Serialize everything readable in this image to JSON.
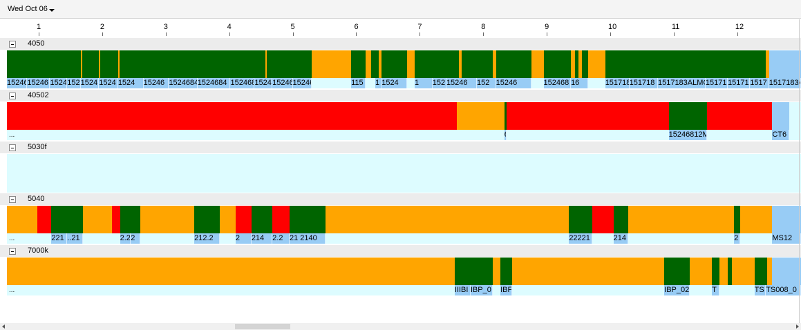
{
  "date_label": "Wed Oct 06",
  "hours": [
    "1",
    "2",
    "3",
    "4",
    "5",
    "6",
    "7",
    "8",
    "9",
    "10",
    "11",
    "12"
  ],
  "colors": {
    "running": "#006400",
    "idle": "#ffa500",
    "down": "#ff0000",
    "job": "#98ccf5"
  },
  "groups": [
    {
      "name": "4050",
      "segments": [
        {
          "s": 0,
          "e": 0.5,
          "c": "idle"
        },
        {
          "s": 0.5,
          "e": 1.66,
          "c": "running"
        },
        {
          "s": 1.66,
          "e": 1.69,
          "c": "idle"
        },
        {
          "s": 1.69,
          "e": 1.95,
          "c": "running"
        },
        {
          "s": 1.95,
          "e": 1.97,
          "c": "idle"
        },
        {
          "s": 1.97,
          "e": 2.25,
          "c": "running"
        },
        {
          "s": 2.25,
          "e": 2.27,
          "c": "idle"
        },
        {
          "s": 2.27,
          "e": 4.57,
          "c": "running"
        },
        {
          "s": 4.57,
          "e": 4.59,
          "c": "idle"
        },
        {
          "s": 4.59,
          "e": 5.3,
          "c": "running"
        },
        {
          "s": 5.3,
          "e": 5.92,
          "c": "idle"
        },
        {
          "s": 5.92,
          "e": 6.15,
          "c": "running"
        },
        {
          "s": 6.15,
          "e": 6.23,
          "c": "idle"
        },
        {
          "s": 6.23,
          "e": 6.35,
          "c": "running"
        },
        {
          "s": 6.35,
          "e": 6.4,
          "c": "idle"
        },
        {
          "s": 6.4,
          "e": 6.8,
          "c": "running"
        },
        {
          "s": 6.8,
          "e": 6.92,
          "c": "idle"
        },
        {
          "s": 6.92,
          "e": 7.62,
          "c": "running"
        },
        {
          "s": 7.62,
          "e": 7.66,
          "c": "idle"
        },
        {
          "s": 7.66,
          "e": 8.15,
          "c": "running"
        },
        {
          "s": 8.15,
          "e": 8.2,
          "c": "idle"
        },
        {
          "s": 8.2,
          "e": 8.76,
          "c": "running"
        },
        {
          "s": 8.76,
          "e": 8.95,
          "c": "idle"
        },
        {
          "s": 8.95,
          "e": 9.38,
          "c": "running"
        },
        {
          "s": 9.38,
          "e": 9.44,
          "c": "idle"
        },
        {
          "s": 9.44,
          "e": 9.5,
          "c": "running"
        },
        {
          "s": 9.5,
          "e": 9.55,
          "c": "idle"
        },
        {
          "s": 9.55,
          "e": 9.65,
          "c": "running"
        },
        {
          "s": 9.65,
          "e": 9.92,
          "c": "idle"
        },
        {
          "s": 9.92,
          "e": 12.45,
          "c": "running"
        },
        {
          "s": 12.45,
          "e": 12.5,
          "c": "idle"
        },
        {
          "s": 12.5,
          "e": 13.0,
          "c": "job"
        }
      ],
      "jobs": [
        {
          "s": 0,
          "e": 0.45,
          "t": ".15246"
        },
        {
          "s": 0.45,
          "e": 0.82,
          "t": "15246"
        },
        {
          "s": 0.82,
          "e": 1.18,
          "t": "15246"
        },
        {
          "s": 1.18,
          "e": 1.45,
          "t": "15246"
        },
        {
          "s": 1.45,
          "e": 1.66,
          "t": "15246"
        },
        {
          "s": 1.66,
          "e": 1.95,
          "t": "1524"
        },
        {
          "s": 1.95,
          "e": 2.25,
          "t": "1524"
        },
        {
          "s": 2.25,
          "e": 2.65,
          "t": "1524"
        },
        {
          "s": 2.65,
          "e": 3.05,
          "t": "15246"
        },
        {
          "s": 3.05,
          "e": 3.5,
          "t": "1524684"
        },
        {
          "s": 3.5,
          "e": 4.02,
          "t": "1524684"
        },
        {
          "s": 4.02,
          "e": 4.4,
          "t": "152468"
        },
        {
          "s": 4.4,
          "e": 4.68,
          "t": "15246"
        },
        {
          "s": 4.68,
          "e": 5.0,
          "t": "15246"
        },
        {
          "s": 5.0,
          "e": 5.3,
          "t": "15246"
        },
        {
          "s": 5.92,
          "e": 6.15,
          "t": "115"
        },
        {
          "s": 6.3,
          "e": 6.4,
          "t": "1"
        },
        {
          "s": 6.4,
          "e": 6.8,
          "t": "1524"
        },
        {
          "s": 6.92,
          "e": 7.2,
          "t": "1"
        },
        {
          "s": 7.2,
          "e": 7.42,
          "t": "152"
        },
        {
          "s": 7.42,
          "e": 7.9,
          "t": "15246"
        },
        {
          "s": 7.9,
          "e": 8.2,
          "t": "152"
        },
        {
          "s": 8.2,
          "e": 8.76,
          "t": "15246"
        },
        {
          "s": 8.95,
          "e": 9.38,
          "t": "152468"
        },
        {
          "s": 9.38,
          "e": 9.65,
          "t": "16"
        },
        {
          "s": 9.92,
          "e": 10.3,
          "t": "151718"
        },
        {
          "s": 10.3,
          "e": 10.75,
          "t": "151718"
        },
        {
          "s": 10.75,
          "e": 11.5,
          "t": "1517183ALMC"
        },
        {
          "s": 11.5,
          "e": 11.85,
          "t": "15171"
        },
        {
          "s": 11.85,
          "e": 12.2,
          "t": "15171"
        },
        {
          "s": 12.2,
          "e": 12.5,
          "t": "1517"
        },
        {
          "s": 12.5,
          "e": 13.0,
          "t": "1517183A"
        }
      ],
      "subtext": ""
    },
    {
      "name": "40502",
      "segments": [
        {
          "s": 0,
          "e": 7.58,
          "c": "down"
        },
        {
          "s": 7.58,
          "e": 8.33,
          "c": "idle"
        },
        {
          "s": 8.33,
          "e": 8.37,
          "c": "running"
        },
        {
          "s": 8.37,
          "e": 10.92,
          "c": "down"
        },
        {
          "s": 10.92,
          "e": 11.52,
          "c": "running"
        },
        {
          "s": 11.52,
          "e": 12.55,
          "c": "down"
        },
        {
          "s": 12.55,
          "e": 12.82,
          "c": "job"
        }
      ],
      "jobs": [
        {
          "s": 8.33,
          "e": 8.37,
          "t": "6"
        },
        {
          "s": 10.92,
          "e": 11.52,
          "t": "15246812M"
        },
        {
          "s": 12.55,
          "e": 12.82,
          "t": "CT6"
        }
      ],
      "subtext": "..."
    },
    {
      "name": "5030f",
      "segments": [],
      "jobs": [],
      "subtext": ""
    },
    {
      "name": "5040",
      "segments": [
        {
          "s": 0,
          "e": 0.98,
          "c": "idle"
        },
        {
          "s": 0.98,
          "e": 1.2,
          "c": "down"
        },
        {
          "s": 1.2,
          "e": 1.7,
          "c": "running"
        },
        {
          "s": 1.7,
          "e": 2.15,
          "c": "idle"
        },
        {
          "s": 2.15,
          "e": 2.28,
          "c": "down"
        },
        {
          "s": 2.28,
          "e": 2.6,
          "c": "running"
        },
        {
          "s": 2.6,
          "e": 3.45,
          "c": "idle"
        },
        {
          "s": 3.45,
          "e": 3.85,
          "c": "running"
        },
        {
          "s": 3.85,
          "e": 4.1,
          "c": "idle"
        },
        {
          "s": 4.1,
          "e": 4.35,
          "c": "down"
        },
        {
          "s": 4.35,
          "e": 4.68,
          "c": "running"
        },
        {
          "s": 4.68,
          "e": 4.95,
          "c": "down"
        },
        {
          "s": 4.95,
          "e": 5.52,
          "c": "running"
        },
        {
          "s": 5.52,
          "e": 9.35,
          "c": "idle"
        },
        {
          "s": 9.35,
          "e": 9.72,
          "c": "running"
        },
        {
          "s": 9.72,
          "e": 10.05,
          "c": "down"
        },
        {
          "s": 10.05,
          "e": 10.28,
          "c": "running"
        },
        {
          "s": 10.28,
          "e": 11.95,
          "c": "idle"
        },
        {
          "s": 11.95,
          "e": 12.05,
          "c": "running"
        },
        {
          "s": 12.05,
          "e": 12.55,
          "c": "idle"
        },
        {
          "s": 12.55,
          "e": 13.0,
          "c": "job"
        }
      ],
      "jobs": [
        {
          "s": 1.2,
          "e": 1.45,
          "t": "221"
        },
        {
          "s": 1.45,
          "e": 1.7,
          "t": "..21"
        },
        {
          "s": 2.28,
          "e": 2.45,
          "t": "2.2"
        },
        {
          "s": 2.45,
          "e": 2.6,
          "t": "2"
        },
        {
          "s": 3.45,
          "e": 3.85,
          "t": "212.2"
        },
        {
          "s": 4.1,
          "e": 4.35,
          "t": "2"
        },
        {
          "s": 4.35,
          "e": 4.68,
          "t": "214"
        },
        {
          "s": 4.68,
          "e": 4.95,
          "t": "2.2"
        },
        {
          "s": 4.95,
          "e": 5.52,
          "t": "21 2140"
        },
        {
          "s": 9.35,
          "e": 9.72,
          "t": "22221"
        },
        {
          "s": 10.05,
          "e": 10.28,
          "t": "214"
        },
        {
          "s": 11.95,
          "e": 12.05,
          "t": "2"
        },
        {
          "s": 12.55,
          "e": 13.0,
          "t": "MS12"
        }
      ],
      "subtext": "..."
    },
    {
      "name": "7000k",
      "segments": [
        {
          "s": 0,
          "e": 7.55,
          "c": "idle"
        },
        {
          "s": 7.55,
          "e": 8.15,
          "c": "running"
        },
        {
          "s": 8.15,
          "e": 8.27,
          "c": "idle"
        },
        {
          "s": 8.27,
          "e": 8.45,
          "c": "running"
        },
        {
          "s": 8.45,
          "e": 10.85,
          "c": "idle"
        },
        {
          "s": 10.85,
          "e": 11.25,
          "c": "running"
        },
        {
          "s": 11.25,
          "e": 11.6,
          "c": "idle"
        },
        {
          "s": 11.6,
          "e": 11.72,
          "c": "running"
        },
        {
          "s": 11.72,
          "e": 11.85,
          "c": "idle"
        },
        {
          "s": 11.85,
          "e": 11.92,
          "c": "running"
        },
        {
          "s": 11.92,
          "e": 12.27,
          "c": "idle"
        },
        {
          "s": 12.27,
          "e": 12.47,
          "c": "running"
        },
        {
          "s": 12.47,
          "e": 12.55,
          "c": "idle"
        },
        {
          "s": 12.55,
          "e": 13.0,
          "c": "job"
        }
      ],
      "jobs": [
        {
          "s": 7.55,
          "e": 7.8,
          "t": "IIIBI"
        },
        {
          "s": 7.8,
          "e": 8.15,
          "t": "IBP_0"
        },
        {
          "s": 8.27,
          "e": 8.45,
          "t": "IBF"
        },
        {
          "s": 10.85,
          "e": 11.25,
          "t": "IBP_02"
        },
        {
          "s": 11.6,
          "e": 11.72,
          "t": "T"
        },
        {
          "s": 12.27,
          "e": 12.45,
          "t": "TS"
        },
        {
          "s": 12.45,
          "e": 13.0,
          "t": "TS008_0"
        }
      ],
      "subtext": "..."
    }
  ]
}
